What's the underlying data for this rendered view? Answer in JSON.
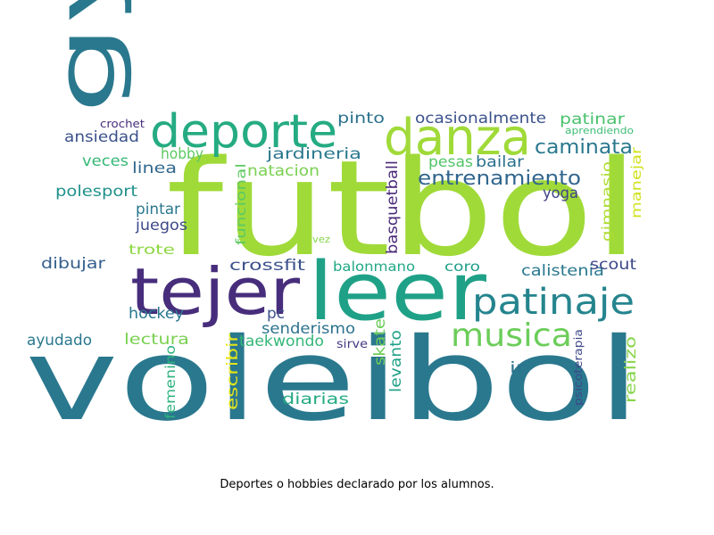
{
  "caption": "Deportes o hobbies declarado por los alumnos.",
  "words": [
    {
      "text": "futbol",
      "color": "#a0da39"
    },
    {
      "text": "voleibol",
      "color": "#2a788e"
    },
    {
      "text": "gym",
      "color": "#2a788e"
    },
    {
      "text": "leer",
      "color": "#1fa187"
    },
    {
      "text": "tejer",
      "color": "#472d7b"
    },
    {
      "text": "danza",
      "color": "#a0da39"
    },
    {
      "text": "deporte",
      "color": "#25ab82"
    },
    {
      "text": "patinaje",
      "color": "#25858e"
    },
    {
      "text": "musica",
      "color": "#6ccd5a"
    },
    {
      "text": "entrenamiento",
      "color": "#31668e"
    },
    {
      "text": "caminata",
      "color": "#2a788e"
    },
    {
      "text": "ocasionalmente",
      "color": "#3b528b"
    },
    {
      "text": "pinto",
      "color": "#2c728e"
    },
    {
      "text": "patinar",
      "color": "#4ac16d"
    },
    {
      "text": "aprendiendo",
      "color": "#3dbc74"
    },
    {
      "text": "crochet",
      "color": "#472d7b"
    },
    {
      "text": "ansiedad",
      "color": "#3b528b"
    },
    {
      "text": "jardineria",
      "color": "#2a788e"
    },
    {
      "text": "hobby",
      "color": "#5ec962"
    },
    {
      "text": "veces",
      "color": "#37b878"
    },
    {
      "text": "linea",
      "color": "#31688e"
    },
    {
      "text": "natacion",
      "color": "#7ad151"
    },
    {
      "text": "polesport",
      "color": "#21918c"
    },
    {
      "text": "funcional",
      "color": "#5ec962"
    },
    {
      "text": "basquetball",
      "color": "#482878"
    },
    {
      "text": "pesas",
      "color": "#52c569"
    },
    {
      "text": "bailar",
      "color": "#2c728e"
    },
    {
      "text": "yoga",
      "color": "#414487"
    },
    {
      "text": "gimnasio",
      "color": "#addc30"
    },
    {
      "text": "manejar",
      "color": "#d0e11c"
    },
    {
      "text": "pintar",
      "color": "#2a788e"
    },
    {
      "text": "juegos",
      "color": "#3e4989"
    },
    {
      "text": "trote",
      "color": "#8fd744"
    },
    {
      "text": "vez",
      "color": "#86d549"
    },
    {
      "text": "dibujar",
      "color": "#35608d"
    },
    {
      "text": "crossfit",
      "color": "#3b528b"
    },
    {
      "text": "balonmano",
      "color": "#22a884"
    },
    {
      "text": "coro",
      "color": "#1f9e89"
    },
    {
      "text": "calistenia",
      "color": "#2a788e"
    },
    {
      "text": "scout",
      "color": "#3e4989"
    },
    {
      "text": "hockey",
      "color": "#2a788e"
    },
    {
      "text": "pc",
      "color": "#3b528b"
    },
    {
      "text": "senderismo",
      "color": "#2c728e"
    },
    {
      "text": "ayudado",
      "color": "#2a788e"
    },
    {
      "text": "lectura",
      "color": "#7ad151"
    },
    {
      "text": "taekwondo",
      "color": "#35b779"
    },
    {
      "text": "sirve",
      "color": "#443983"
    },
    {
      "text": "skate",
      "color": "#6ccd5a"
    },
    {
      "text": "levanto",
      "color": "#1fa187"
    },
    {
      "text": "psicoterapia",
      "color": "#3e4989"
    },
    {
      "text": "realizo",
      "color": "#86d549"
    },
    {
      "text": "femenino",
      "color": "#2db27d"
    },
    {
      "text": "escribir",
      "color": "#e4e419"
    },
    {
      "text": "diarias",
      "color": "#25ab82"
    },
    {
      "text": "ir",
      "color": "#2c728e"
    }
  ]
}
